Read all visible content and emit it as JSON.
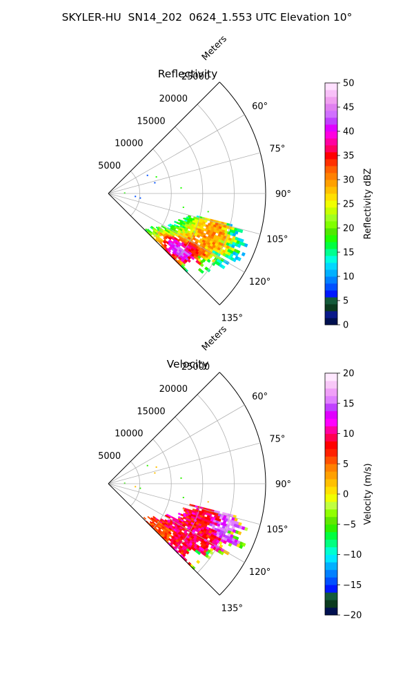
{
  "figure": {
    "suptitle": "SKYLER-HU  SN14_202  0624_1.553 UTC Elevation 10°"
  },
  "chart_data": [
    {
      "type": "polar-sector",
      "title": "Reflectivity",
      "radial_label": "Meters",
      "r_max": 25000,
      "r_ticks": [
        5000,
        10000,
        15000,
        20000,
        25000
      ],
      "r_tick_labels": [
        "5000",
        "10000",
        "15000",
        "20000",
        "25000"
      ],
      "theta_range_deg": [
        45,
        135
      ],
      "theta_ticks_deg": [
        60,
        75,
        90,
        105,
        120,
        135
      ],
      "theta_tick_labels": [
        "60°",
        "75°",
        "90°",
        "105°",
        "120°",
        "135°"
      ],
      "grid": true,
      "colorbar": {
        "label": "Reflectivity dBZ",
        "min": 0,
        "max": 50,
        "ticks": [
          0,
          5,
          10,
          15,
          20,
          25,
          30,
          35,
          40,
          45,
          50
        ],
        "tick_labels": [
          "0",
          "5",
          "10",
          "15",
          "20",
          "25",
          "30",
          "35",
          "40",
          "45",
          "50"
        ],
        "colors": [
          "#001050",
          "#0a1a8a",
          "#0b3a1e",
          "#145a3a",
          "#0018ff",
          "#0050ff",
          "#0080ff",
          "#00b0ff",
          "#00d8ff",
          "#00ffe0",
          "#00ff90",
          "#00ff40",
          "#20ff00",
          "#50e800",
          "#80ff00",
          "#a0ff20",
          "#c8ff00",
          "#f0ff00",
          "#ffe000",
          "#ffc000",
          "#ffa000",
          "#ff8000",
          "#ff6000",
          "#ff3000",
          "#ff0000",
          "#ff0060",
          "#ff00a0",
          "#ff00e0",
          "#e000ff",
          "#c040ff",
          "#d070ff",
          "#e080f0",
          "#f0a0f0",
          "#f8c0f8",
          "#ffe0ff"
        ]
      },
      "data": {
        "main_echo_theta_deg": [
          104,
          135
        ],
        "main_echo_range_m": [
          7000,
          22000
        ],
        "value_range": [
          10,
          45
        ],
        "dominant_values": [
          20,
          25,
          30
        ],
        "core_max_near": [
          130,
          14000
        ]
      }
    },
    {
      "type": "polar-sector",
      "title": "Velocity",
      "radial_label": "Meters",
      "r_max": 25000,
      "r_ticks": [
        5000,
        10000,
        15000,
        20000,
        25000
      ],
      "r_tick_labels": [
        "5000",
        "10000",
        "15000",
        "20000",
        "25000"
      ],
      "theta_range_deg": [
        45,
        135
      ],
      "theta_ticks_deg": [
        60,
        75,
        90,
        105,
        120,
        135
      ],
      "theta_tick_labels": [
        "60°",
        "75°",
        "90°",
        "105°",
        "120°",
        "135°"
      ],
      "grid": true,
      "colorbar": {
        "label": "Velocity (m/s)",
        "min": -20,
        "max": 20,
        "ticks": [
          -20,
          -15,
          -10,
          -5,
          0,
          5,
          10,
          15,
          20
        ],
        "tick_labels": [
          "−20",
          "−15",
          "−10",
          "−5",
          "0",
          "5",
          "10",
          "15",
          "20"
        ],
        "colors": [
          "#001050",
          "#0b3a1e",
          "#145a3a",
          "#0018ff",
          "#0050ff",
          "#0080ff",
          "#00b0ff",
          "#00e8ff",
          "#00ffd0",
          "#00ff80",
          "#00ff40",
          "#30f000",
          "#60e800",
          "#90ff00",
          "#c0ff40",
          "#f0ff00",
          "#ffe000",
          "#ffc000",
          "#ffa000",
          "#ff8000",
          "#ff5000",
          "#ff2000",
          "#ff0000",
          "#ff0050",
          "#ff00a0",
          "#ff00ff",
          "#e000ff",
          "#c040ff",
          "#e080ff",
          "#f0a0f8",
          "#f8c8f8",
          "#ffe8ff"
        ]
      },
      "data": {
        "main_echo_theta_deg": [
          104,
          135
        ],
        "main_echo_range_m": [
          7000,
          22000
        ],
        "value_range": [
          -12,
          18
        ],
        "dominant_values": [
          8,
          10,
          12
        ],
        "outer_band_values": [
          14,
          16
        ]
      }
    }
  ]
}
